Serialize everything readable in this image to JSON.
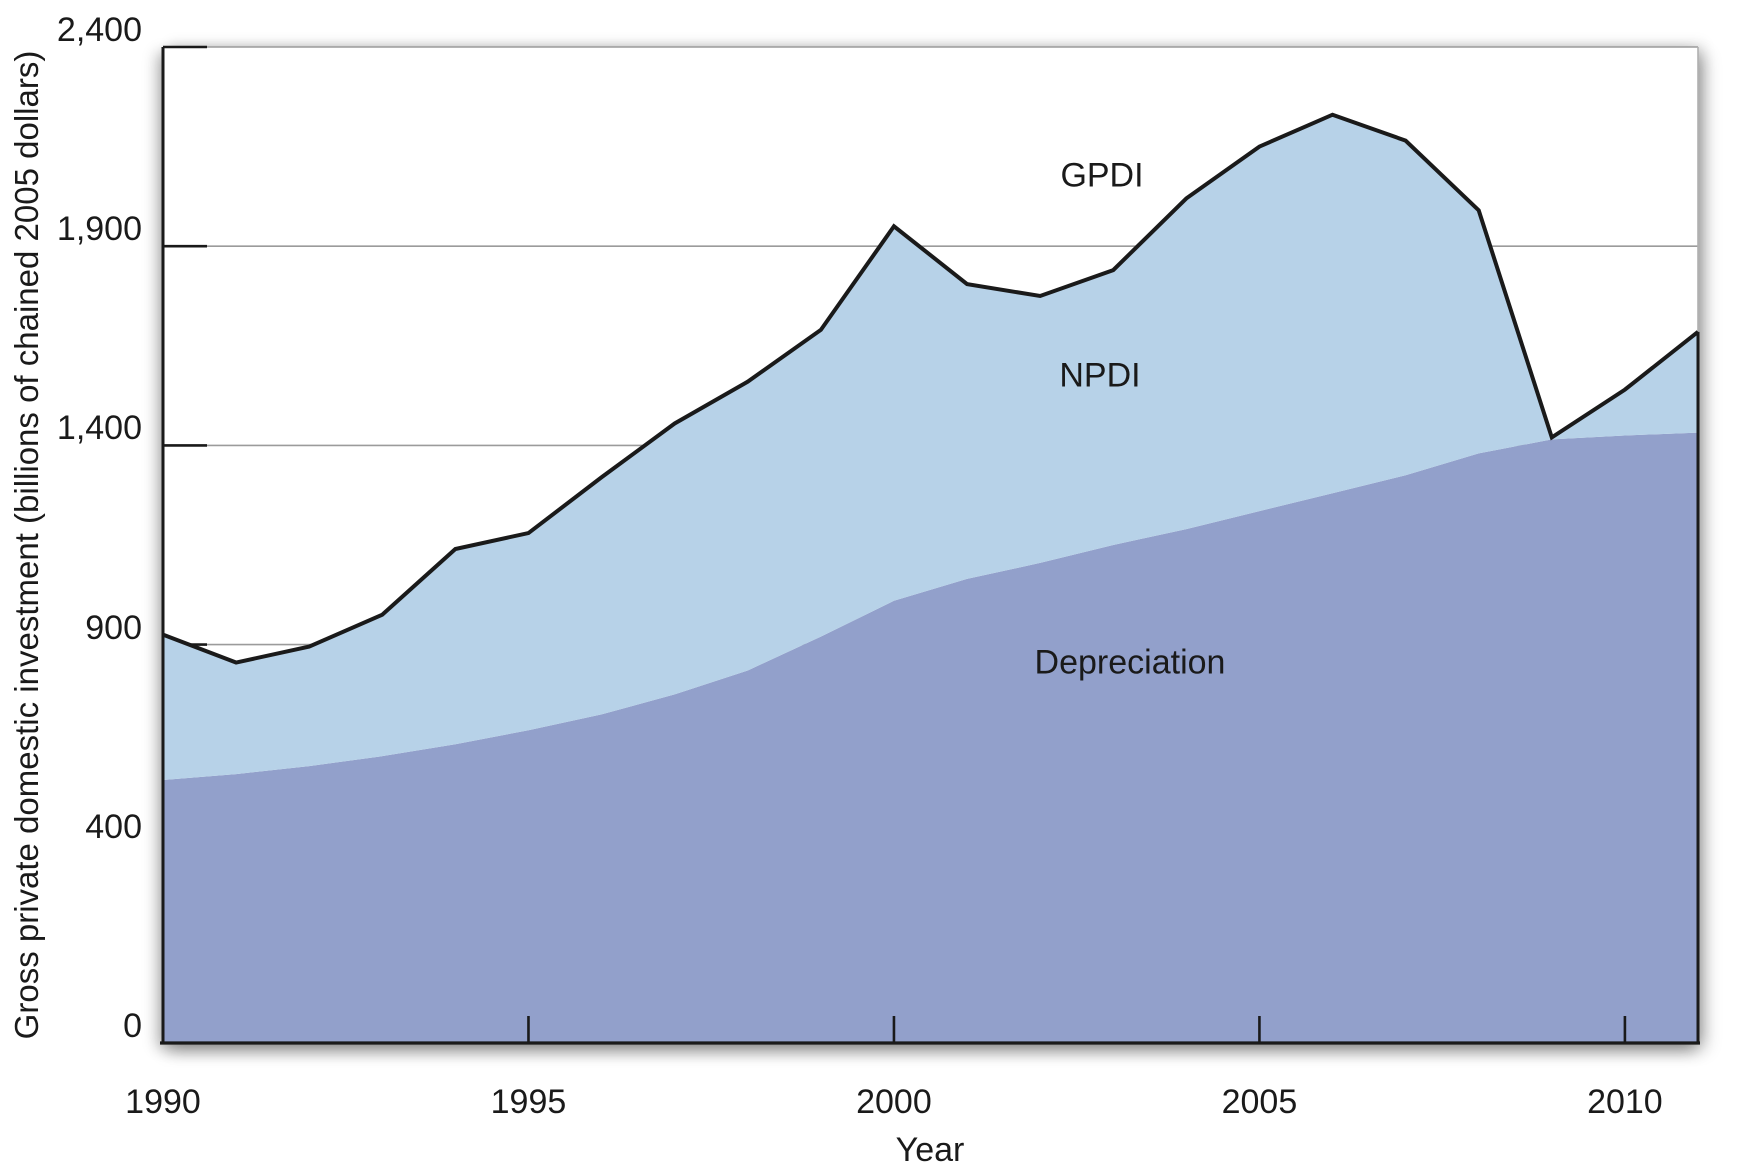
{
  "figure": {
    "y_axis_title": "Gross private domestic investment (billions of chained 2005 dollars)",
    "x_axis_title": "Year",
    "area_labels": {
      "gpdi": "GPDI",
      "npdi": "NPDI",
      "depreciation": "Depreciation"
    }
  },
  "chart_data": {
    "type": "area",
    "title": "",
    "xlabel": "Year",
    "ylabel": "Gross private domestic investment (billions of chained 2005 dollars)",
    "xlim": [
      1990,
      2011
    ],
    "ylim": [
      0,
      2400
    ],
    "x_ticks": [
      1990,
      1995,
      2000,
      2005,
      2010
    ],
    "y_ticks": [
      0,
      400,
      900,
      1400,
      1900,
      2400
    ],
    "y_tick_labels": [
      "0",
      "400",
      "900",
      "1,400",
      "1,900",
      "2,400"
    ],
    "grid": "horizontal gridlines at y ticks",
    "legend_position": "labels inside plot area",
    "note": "Stacked view: lower (darker) band is Depreciation; upper (lighter) band is NPDI = GPDI - Depreciation; black line is total GPDI.",
    "x": [
      1990,
      1991,
      1992,
      1993,
      1994,
      1995,
      1996,
      1997,
      1998,
      1999,
      2000,
      2001,
      2002,
      2003,
      2004,
      2005,
      2006,
      2007,
      2008,
      2009,
      2010,
      2011
    ],
    "series": [
      {
        "name": "GPDI",
        "values": [
          925,
          855,
          895,
          975,
          1140,
          1180,
          1320,
          1455,
          1560,
          1690,
          1950,
          1805,
          1775,
          1840,
          2020,
          2150,
          2230,
          2165,
          1990,
          1420,
          1540,
          1685
        ]
      },
      {
        "name": "Depreciation",
        "values": [
          560,
          575,
          595,
          620,
          650,
          685,
          725,
          775,
          835,
          920,
          1010,
          1065,
          1105,
          1150,
          1190,
          1235,
          1280,
          1325,
          1380,
          1415,
          1425,
          1432
        ]
      }
    ],
    "colors": {
      "npdi_area": "#b7d2e8",
      "depreciation_area": "#92a0cb",
      "gpdi_line": "#1a1a1a",
      "gridline": "#9b9b9b",
      "axis": "#1a1a1a",
      "right_border": "#b0b0b0"
    }
  }
}
